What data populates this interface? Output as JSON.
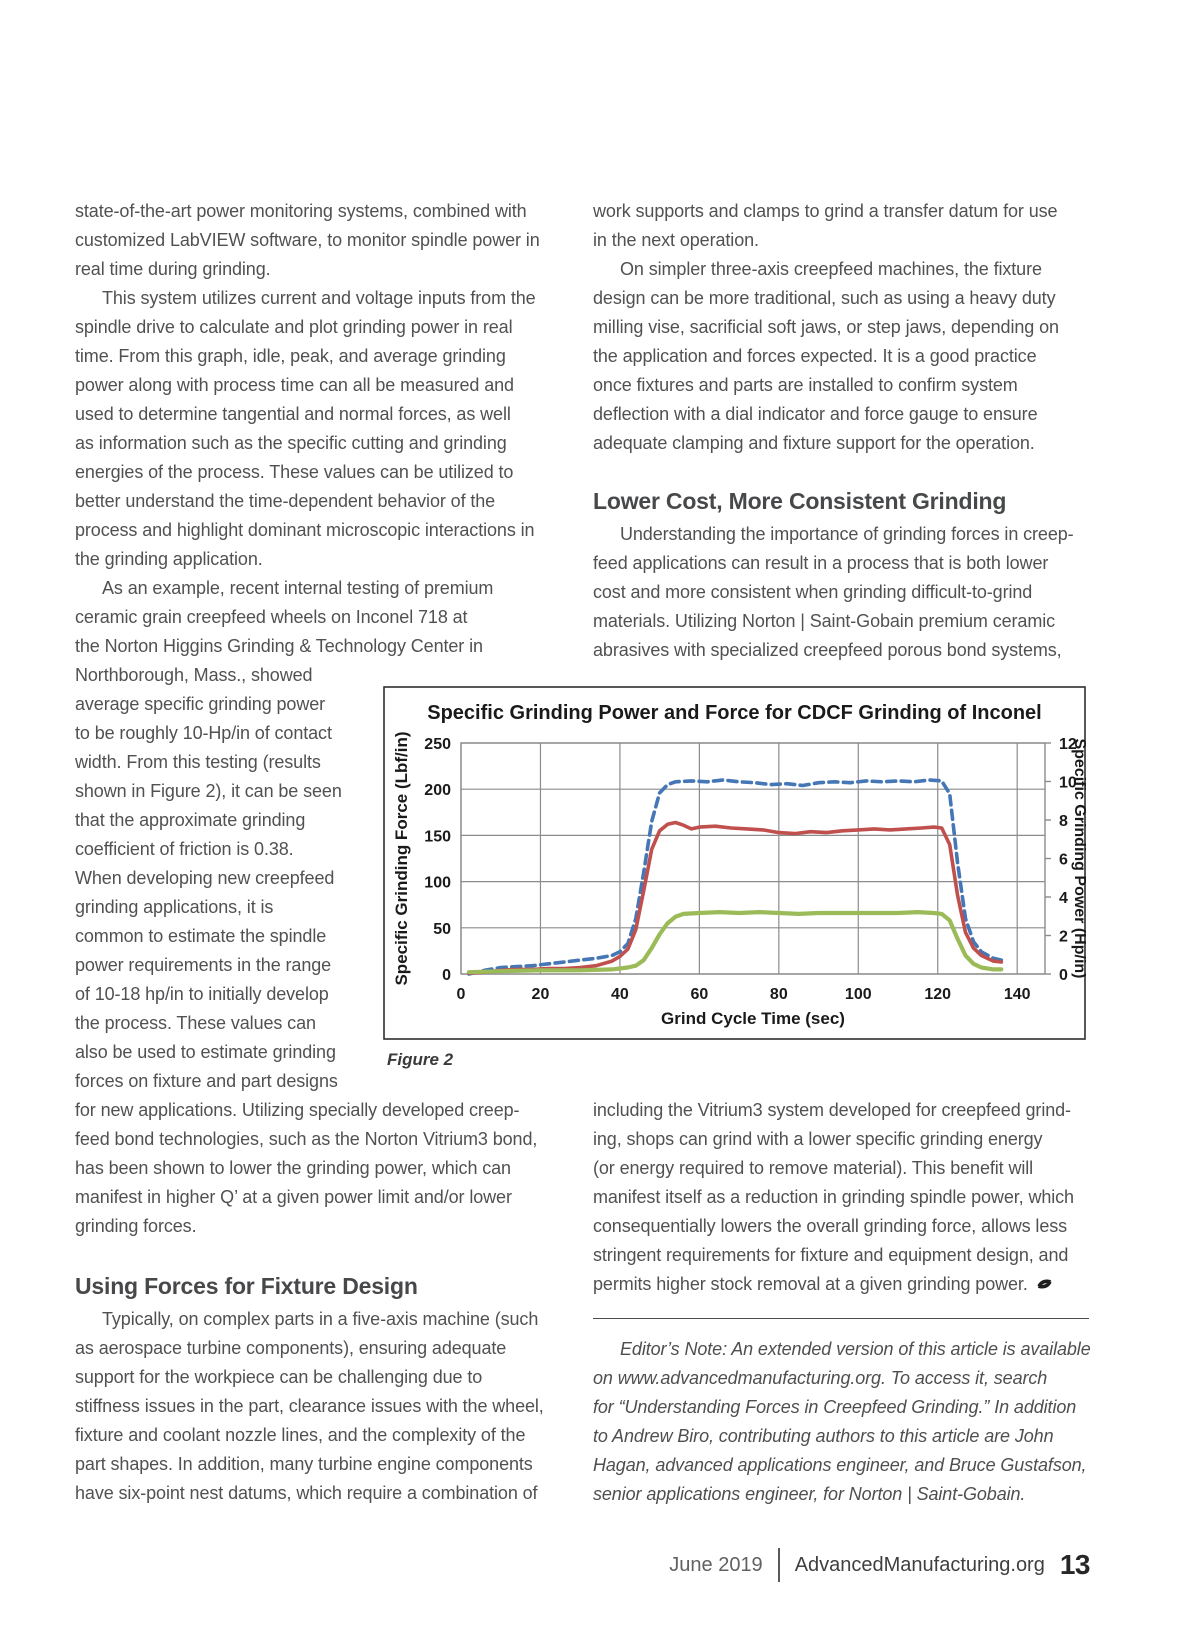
{
  "left_column": {
    "p1": {
      "lines": [
        "state-of-the-art power monitoring systems, combined with",
        "customized LabVIEW software, to monitor spindle power in",
        "real time during grinding."
      ]
    },
    "p2": {
      "lines": [
        "This system utilizes current and voltage inputs from the",
        "spindle drive to calculate and plot grinding power in real",
        "time. From this graph, idle, peak, and average grinding",
        "power along with process time can all be measured and",
        "used to determine tangential and normal forces, as well",
        "as information such as the specific cutting and grinding",
        "energies of the process. These values can be utilized to",
        "better understand the time-dependent behavior of the",
        "process and highlight dominant microscopic interactions in",
        "the grinding application."
      ]
    },
    "p3_intro": {
      "lines": [
        "As an example, recent internal testing of premium",
        "ceramic grain creepfeed wheels on Inconel 718 at",
        "the Norton Higgins Grinding & Technology Center in"
      ]
    },
    "p3_narrow": {
      "lines": [
        "Northborough, Mass., showed",
        "average specific grinding power",
        "to be roughly 10-Hp/in of contact",
        "width. From this testing (results",
        "shown in Figure 2), it can be seen",
        "that the approximate grinding",
        "coefficient of friction is 0.38.",
        "When developing new creepfeed",
        "grinding applications, it is",
        "common to estimate the spindle",
        "power requirements in the range",
        "of 10-18 hp/in to initially develop",
        "the process. These values can",
        "also be used to estimate grinding",
        "forces on fixture and part designs"
      ]
    },
    "p3_cont": {
      "lines": [
        "for new applications. Utilizing specially developed creep-",
        "feed bond technologies, such as the Norton Vitrium3 bond,",
        "has been shown to lower the grinding power, which can",
        "manifest in higher Q’ at a given power limit and/or lower",
        "grinding forces."
      ]
    },
    "heading": "Using Forces for Fixture Design",
    "p4": {
      "lines": [
        "Typically, on complex parts in a five-axis machine (such",
        "as aerospace turbine components), ensuring adequate",
        "support for the workpiece can be challenging due to",
        "stiffness issues in the part, clearance issues with the wheel,",
        "fixture and coolant nozzle lines, and the complexity of the",
        "part shapes. In addition, many turbine engine components",
        "have six-point nest datums, which require a combination of"
      ]
    }
  },
  "right_column": {
    "p1": {
      "lines": [
        "work supports and clamps to grind a transfer datum for use",
        "in the next operation."
      ]
    },
    "p2": {
      "lines": [
        "On simpler three-axis creepfeed machines, the fixture",
        "design can be more traditional, such as using a heavy duty",
        "milling vise, sacrificial soft jaws, or step jaws, depending on",
        "the application and forces expected. It is a good practice",
        "once fixtures and parts are installed to confirm system",
        "deflection with a dial indicator and force gauge to ensure",
        "adequate clamping and fixture support for the operation."
      ]
    },
    "heading": "Lower Cost, More Consistent Grinding",
    "p3": {
      "lines": [
        "Understanding the importance of grinding forces in creep-",
        "feed applications can result in a process that is both lower",
        "cost and more consistent when grinding difficult-to-grind",
        "materials. Utilizing Norton | Saint-Gobain premium ceramic",
        "abrasives with specialized creepfeed porous bond systems,"
      ]
    },
    "p4": {
      "lines": [
        "including the Vitrium3 system developed for creepfeed grind-",
        "ing, shops can grind with a lower specific grinding energy",
        "(or energy required to remove material). This benefit will",
        "manifest itself as a reduction in grinding spindle power, which",
        "consequentially lowers the overall grinding force, allows less",
        "stringent requirements for fixture and equipment design, and",
        "permits higher stock removal at a given grinding power."
      ]
    },
    "editors_note": {
      "lines": [
        "Editor’s Note: An extended version of this article is available",
        "on www.advancedmanufacturing.org. To access it, search",
        "for “Understanding Forces in Creepfeed Grinding.” In addition",
        "to Andrew Biro, contributing authors to this article are John",
        "Hagan, advanced applications engineer, and Bruce Gustafson,",
        "senior applications engineer, for Norton | Saint-Gobain."
      ]
    }
  },
  "figure": {
    "caption": "Figure 2"
  },
  "footer": {
    "issue_date": "June 2019",
    "site": "AdvancedManufacturing.org",
    "page_number": "13"
  },
  "chart_data": {
    "type": "line",
    "title": "Specific Grinding Power and Force for CDCF Grinding of Inconel",
    "xlabel": "Grind Cycle Time (sec)",
    "ylabel_left": "Specific Grinding Force (Lbf/in)",
    "ylabel_right": "Specific Grinding Power (Hp/in)",
    "xlim": [
      0,
      147
    ],
    "x_ticks": [
      0,
      20,
      40,
      60,
      80,
      100,
      120,
      140
    ],
    "ylim_left": [
      0,
      250
    ],
    "left_ticks": [
      0,
      50,
      100,
      150,
      200,
      250
    ],
    "ylim_right": [
      0,
      12
    ],
    "right_ticks": [
      0,
      2,
      4,
      6,
      8,
      10,
      12
    ],
    "grid": true,
    "legend": "none",
    "colors": {
      "grid": "#8c8c8c",
      "box_border": "#2f2f31",
      "text": "#1a1a1a"
    },
    "series": [
      {
        "name": "specific-grinding-power (right axis, Hp/in = Lbf-scale x 12/250)",
        "color": "#4576b5",
        "style": "dashed",
        "width": 3.6,
        "points": [
          [
            2,
            0
          ],
          [
            6,
            4
          ],
          [
            10,
            7
          ],
          [
            14,
            8
          ],
          [
            18,
            9
          ],
          [
            22,
            11
          ],
          [
            26,
            13
          ],
          [
            30,
            15
          ],
          [
            34,
            17
          ],
          [
            38,
            20
          ],
          [
            40,
            24
          ],
          [
            42,
            33
          ],
          [
            44,
            60
          ],
          [
            46,
            110
          ],
          [
            48,
            165
          ],
          [
            50,
            196
          ],
          [
            52,
            205
          ],
          [
            54,
            208
          ],
          [
            58,
            209
          ],
          [
            62,
            208
          ],
          [
            66,
            210
          ],
          [
            70,
            208
          ],
          [
            74,
            207
          ],
          [
            78,
            205
          ],
          [
            82,
            206
          ],
          [
            86,
            204
          ],
          [
            90,
            207
          ],
          [
            94,
            208
          ],
          [
            98,
            207
          ],
          [
            102,
            209
          ],
          [
            106,
            208
          ],
          [
            110,
            209
          ],
          [
            114,
            208
          ],
          [
            118,
            210
          ],
          [
            121,
            209
          ],
          [
            123,
            195
          ],
          [
            125,
            120
          ],
          [
            127,
            60
          ],
          [
            129,
            35
          ],
          [
            131,
            24
          ],
          [
            134,
            17
          ],
          [
            136,
            15
          ]
        ]
      },
      {
        "name": "specific-grinding-force-red (left axis, Lbf/in)",
        "color": "#c0504d",
        "style": "solid",
        "width": 3.6,
        "points": [
          [
            2,
            1
          ],
          [
            6,
            2
          ],
          [
            10,
            4
          ],
          [
            14,
            5
          ],
          [
            18,
            5
          ],
          [
            22,
            6
          ],
          [
            26,
            6
          ],
          [
            30,
            7
          ],
          [
            34,
            9
          ],
          [
            38,
            14
          ],
          [
            40,
            19
          ],
          [
            42,
            27
          ],
          [
            44,
            48
          ],
          [
            46,
            90
          ],
          [
            48,
            135
          ],
          [
            50,
            155
          ],
          [
            52,
            162
          ],
          [
            54,
            164
          ],
          [
            56,
            161
          ],
          [
            58,
            157
          ],
          [
            60,
            159
          ],
          [
            64,
            160
          ],
          [
            68,
            158
          ],
          [
            72,
            157
          ],
          [
            76,
            156
          ],
          [
            80,
            153
          ],
          [
            84,
            152
          ],
          [
            88,
            154
          ],
          [
            92,
            153
          ],
          [
            96,
            155
          ],
          [
            100,
            156
          ],
          [
            104,
            157
          ],
          [
            108,
            156
          ],
          [
            112,
            157
          ],
          [
            116,
            158
          ],
          [
            119,
            159
          ],
          [
            121,
            158
          ],
          [
            123,
            140
          ],
          [
            125,
            85
          ],
          [
            127,
            45
          ],
          [
            129,
            28
          ],
          [
            131,
            20
          ],
          [
            134,
            14
          ],
          [
            136,
            13
          ]
        ]
      },
      {
        "name": "specific-grinding-force-green (left axis, Lbf/in)",
        "color": "#9bbb59",
        "style": "solid",
        "width": 4.2,
        "points": [
          [
            2,
            2
          ],
          [
            10,
            3
          ],
          [
            20,
            4
          ],
          [
            30,
            4
          ],
          [
            38,
            5
          ],
          [
            42,
            7
          ],
          [
            44,
            9
          ],
          [
            46,
            15
          ],
          [
            48,
            28
          ],
          [
            50,
            43
          ],
          [
            52,
            55
          ],
          [
            54,
            62
          ],
          [
            56,
            65
          ],
          [
            60,
            66
          ],
          [
            65,
            67
          ],
          [
            70,
            66
          ],
          [
            75,
            67
          ],
          [
            80,
            66
          ],
          [
            85,
            65
          ],
          [
            90,
            66
          ],
          [
            95,
            66
          ],
          [
            100,
            66
          ],
          [
            105,
            66
          ],
          [
            110,
            66
          ],
          [
            115,
            67
          ],
          [
            119,
            66
          ],
          [
            121,
            65
          ],
          [
            123,
            58
          ],
          [
            125,
            38
          ],
          [
            127,
            20
          ],
          [
            129,
            11
          ],
          [
            131,
            7
          ],
          [
            134,
            5
          ],
          [
            136,
            5
          ]
        ]
      }
    ]
  }
}
